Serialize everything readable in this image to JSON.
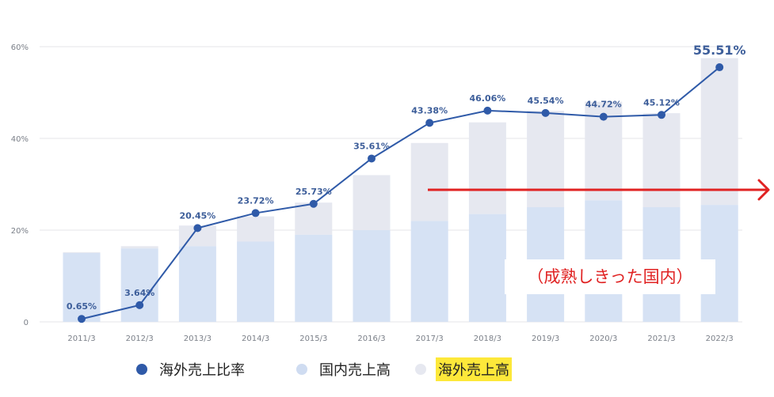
{
  "chart_data": {
    "type": "bar+line",
    "categories": [
      "2011/3",
      "2012/3",
      "2013/3",
      "2014/3",
      "2015/3",
      "2016/3",
      "2017/3",
      "2018/3",
      "2019/3",
      "2020/3",
      "2021/3",
      "2022/3"
    ],
    "y_ticks": [
      "0",
      "20%",
      "40%",
      "60%"
    ],
    "ylim": [
      0,
      60
    ],
    "grid": true,
    "series": [
      {
        "name": "海外売上比率",
        "type": "line",
        "values": [
          0.65,
          3.64,
          20.45,
          23.72,
          25.73,
          35.61,
          43.38,
          46.06,
          45.54,
          44.72,
          45.12,
          55.51
        ],
        "labels": [
          "0.65%",
          "3.64%",
          "20.45%",
          "23.72%",
          "25.73%",
          "35.61%",
          "43.38%",
          "46.06%",
          "45.54%",
          "44.72%",
          "45.12%",
          "55.51%"
        ]
      },
      {
        "name": "国内売上高",
        "type": "bar",
        "values": [
          15,
          16,
          16.5,
          17.5,
          19,
          20,
          22,
          23.5,
          25,
          26.5,
          25,
          25.5
        ]
      },
      {
        "name": "海外売上高",
        "type": "bar",
        "values": [
          0.2,
          0.5,
          4.5,
          5.5,
          7,
          12,
          17,
          20,
          21,
          21.5,
          20.5,
          32
        ]
      }
    ],
    "colors": {
      "line": "#2f5aa8",
      "domestic": "#d6e2f4",
      "overseas": "#e6e8f0",
      "arrow": "#e02222",
      "highlight": "#fde83a"
    }
  },
  "annotation": {
    "note": "（成熟しきった国内）"
  },
  "legend": {
    "items": [
      {
        "label": "海外売上比率",
        "marker": "dot",
        "color": "#2f5aa8",
        "highlight": false
      },
      {
        "label": "国内売上高",
        "marker": "dot",
        "color": "#cfdcf1",
        "highlight": false
      },
      {
        "label": "海外売上高",
        "marker": "dot",
        "color": "#e6e8f0",
        "highlight": true
      }
    ]
  }
}
